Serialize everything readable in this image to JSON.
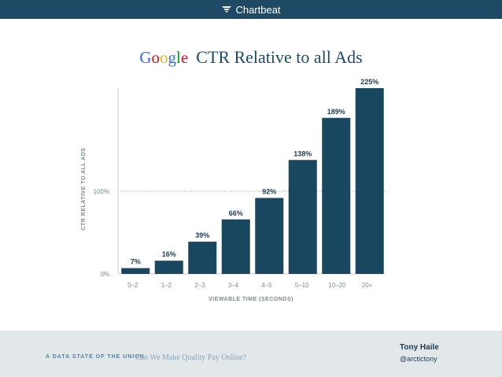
{
  "header": {
    "brand": "Chartbeat",
    "brand_icon": "chartbeat-logo-icon"
  },
  "google_logo": [
    "G",
    "o",
    "o",
    "g",
    "l",
    "e"
  ],
  "google_colors": [
    "#3369e8",
    "#d50f25",
    "#eeb211",
    "#3369e8",
    "#009925",
    "#d50f25"
  ],
  "chart_data": {
    "type": "bar",
    "title": "CTR Relative to all Ads",
    "xlabel": "VIEWABLE TIME (SECONDS)",
    "ylabel": "CTR RELATIVE TO ALL ADS",
    "categories": [
      "0–2",
      "1–2",
      "2–3",
      "3–4",
      "4–5",
      "5–10",
      "10–20",
      "20+"
    ],
    "values": [
      7,
      16,
      39,
      66,
      92,
      138,
      189,
      225
    ],
    "value_labels": [
      "7%",
      "16%",
      "39%",
      "66%",
      "92%",
      "138%",
      "189%",
      "225%"
    ],
    "yticks": [
      0,
      100
    ],
    "ytick_labels": [
      "0%",
      "100%"
    ],
    "reference_line": 100,
    "ylim": [
      0,
      225
    ],
    "bar_color": "#18475f",
    "grid": false
  },
  "footer": {
    "tagline": "A DATA STATE OF THE UNION",
    "subtitle": "Can We Make Quality Pay Online?",
    "author": "Tony Haile",
    "handle": "@arctictony"
  }
}
